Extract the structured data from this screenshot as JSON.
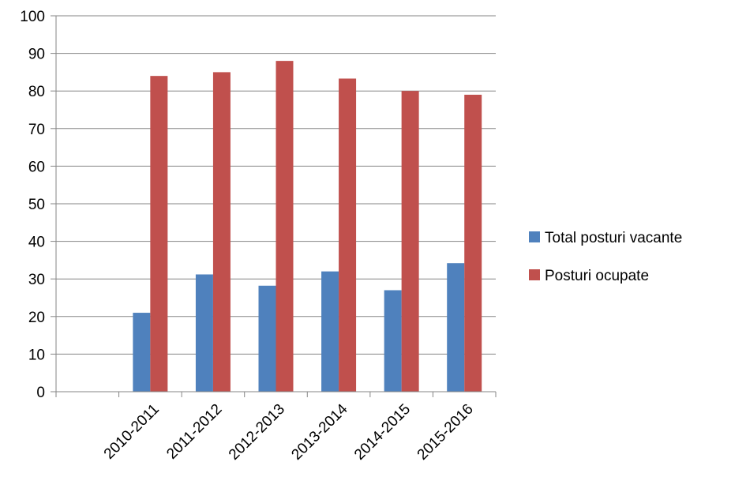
{
  "chart_data": {
    "type": "bar",
    "categories": [
      "",
      "2010-2011",
      "2011-2012",
      "2012-2013",
      "2013-2014",
      "2014-2015",
      "2015-2016"
    ],
    "series": [
      {
        "name": "Total posturi vacante",
        "color": "#4F81BD",
        "values": [
          null,
          21,
          31.2,
          28.2,
          32,
          27,
          34.2
        ]
      },
      {
        "name": "Posturi ocupate",
        "color": "#C0504D",
        "values": [
          null,
          84,
          85,
          88,
          83.3,
          80,
          79
        ]
      }
    ],
    "ylim": [
      0,
      100
    ],
    "yticks": [
      0,
      10,
      20,
      30,
      40,
      50,
      60,
      70,
      80,
      90,
      100
    ],
    "grid": true,
    "legend_position": "right",
    "title": "",
    "xlabel": "",
    "ylabel": ""
  }
}
